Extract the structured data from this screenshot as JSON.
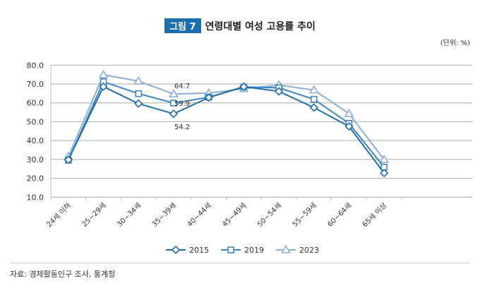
{
  "header": {
    "figure_label": "그림 7",
    "title": "연령대별 여성 고용률 추이",
    "unit": "(단위: %)"
  },
  "source": "자료: 경제활동인구 조사, 통계청",
  "chart_data": {
    "type": "line",
    "categories": [
      "24세 이하",
      "25~29세",
      "30~34세",
      "35~39세",
      "40~44세",
      "45~49세",
      "50~54세",
      "55~59세",
      "60~64세",
      "65세 이상"
    ],
    "ylim": [
      10,
      80
    ],
    "yticks": [
      "10.0",
      "20.0",
      "30.0",
      "40.0",
      "50.0",
      "60.0",
      "70.0",
      "80.0"
    ],
    "grid": true,
    "legend_position": "bottom",
    "series": [
      {
        "name": "2015",
        "color": "#1f6fa8",
        "marker": "diamond",
        "values": [
          29.8,
          68.6,
          59.6,
          54.2,
          62.8,
          68.6,
          66.1,
          57.5,
          47.5,
          22.8
        ]
      },
      {
        "name": "2019",
        "color": "#3f86c0",
        "marker": "square",
        "values": [
          29.6,
          71.2,
          64.9,
          59.9,
          63.0,
          68.4,
          68.0,
          61.9,
          49.1,
          25.9
        ]
      },
      {
        "name": "2023",
        "color": "#8aaed4",
        "marker": "triangle",
        "values": [
          31.5,
          74.9,
          71.5,
          64.7,
          65.2,
          67.5,
          69.4,
          66.8,
          54.3,
          29.9
        ]
      }
    ],
    "annotations": [
      {
        "category": "35~39세",
        "series": "2023",
        "text": "64.7"
      },
      {
        "category": "35~39세",
        "series": "2019",
        "text": "59.9"
      },
      {
        "category": "35~39세",
        "series": "2015",
        "text": "54.2"
      }
    ]
  }
}
